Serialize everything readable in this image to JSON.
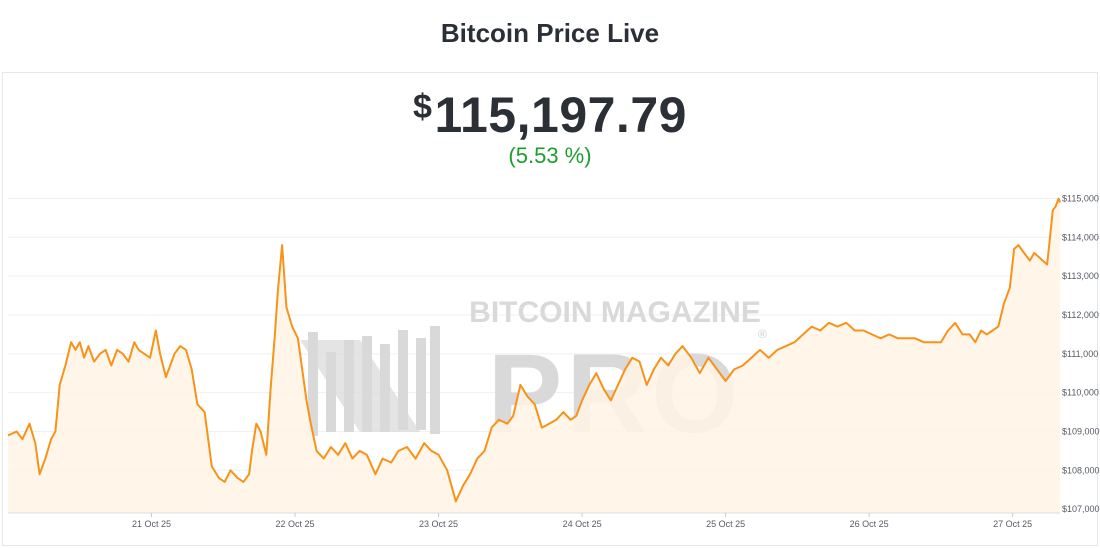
{
  "page": {
    "title": "Bitcoin Price Live"
  },
  "ticker": {
    "currency_symbol": "$",
    "price": "115,197.79",
    "change": "(5.53 %)"
  },
  "watermark": {
    "line1": "BITCOIN MAGAZINE",
    "line2": "PRO",
    "mark": "®"
  },
  "colors": {
    "line": "#f7931a",
    "fill": "#fff3e4",
    "grid": "#eef0f2",
    "change_positive": "#1f9d2f",
    "watermark": "#d9d9d9"
  },
  "chart_data": {
    "type": "area",
    "title": "",
    "xlabel": "",
    "ylabel": "",
    "y_axis_position": "right",
    "grid": true,
    "x_range": [
      20.0,
      27.33
    ],
    "ylim": [
      106900,
      115400
    ],
    "x_ticks": [
      {
        "x": 21,
        "label": "21 Oct 25"
      },
      {
        "x": 22,
        "label": "22 Oct 25"
      },
      {
        "x": 23,
        "label": "23 Oct 25"
      },
      {
        "x": 24,
        "label": "24 Oct 25"
      },
      {
        "x": 25,
        "label": "25 Oct 25"
      },
      {
        "x": 26,
        "label": "26 Oct 25"
      },
      {
        "x": 27,
        "label": "27 Oct 25"
      }
    ],
    "y_ticks": [
      {
        "y": 107000,
        "label": "$107,000"
      },
      {
        "y": 108000,
        "label": "$108,000"
      },
      {
        "y": 109000,
        "label": "$109,000"
      },
      {
        "y": 110000,
        "label": "$110,000"
      },
      {
        "y": 111000,
        "label": "$111,000"
      },
      {
        "y": 112000,
        "label": "$112,000"
      },
      {
        "y": 113000,
        "label": "$113,000"
      },
      {
        "y": 114000,
        "label": "$114,000"
      },
      {
        "y": 115000,
        "label": "$115,000"
      }
    ],
    "series": [
      {
        "points": [
          [
            20.0,
            108900
          ],
          [
            20.06,
            109000
          ],
          [
            20.1,
            108800
          ],
          [
            20.15,
            109200
          ],
          [
            20.19,
            108700
          ],
          [
            20.22,
            107900
          ],
          [
            20.26,
            108300
          ],
          [
            20.3,
            108800
          ],
          [
            20.33,
            109000
          ],
          [
            20.36,
            110200
          ],
          [
            20.4,
            110700
          ],
          [
            20.44,
            111300
          ],
          [
            20.47,
            111100
          ],
          [
            20.5,
            111300
          ],
          [
            20.53,
            110900
          ],
          [
            20.56,
            111200
          ],
          [
            20.6,
            110800
          ],
          [
            20.64,
            111000
          ],
          [
            20.68,
            111100
          ],
          [
            20.72,
            110700
          ],
          [
            20.76,
            111100
          ],
          [
            20.8,
            111000
          ],
          [
            20.84,
            110800
          ],
          [
            20.88,
            111300
          ],
          [
            20.91,
            111100
          ],
          [
            20.95,
            111000
          ],
          [
            20.99,
            110900
          ],
          [
            21.03,
            111600
          ],
          [
            21.06,
            111000
          ],
          [
            21.1,
            110400
          ],
          [
            21.13,
            110700
          ],
          [
            21.16,
            111000
          ],
          [
            21.2,
            111200
          ],
          [
            21.24,
            111100
          ],
          [
            21.28,
            110600
          ],
          [
            21.32,
            109700
          ],
          [
            21.37,
            109500
          ],
          [
            21.42,
            108100
          ],
          [
            21.47,
            107800
          ],
          [
            21.51,
            107700
          ],
          [
            21.55,
            108000
          ],
          [
            21.6,
            107800
          ],
          [
            21.64,
            107700
          ],
          [
            21.68,
            107900
          ],
          [
            21.7,
            108500
          ],
          [
            21.73,
            109200
          ],
          [
            21.76,
            109000
          ],
          [
            21.8,
            108400
          ],
          [
            21.83,
            110100
          ],
          [
            21.86,
            111500
          ],
          [
            21.88,
            112600
          ],
          [
            21.91,
            113800
          ],
          [
            21.94,
            112200
          ],
          [
            21.98,
            111700
          ],
          [
            22.02,
            111400
          ],
          [
            22.05,
            110600
          ],
          [
            22.08,
            109800
          ],
          [
            22.11,
            109200
          ],
          [
            22.15,
            108500
          ],
          [
            22.2,
            108300
          ],
          [
            22.25,
            108600
          ],
          [
            22.3,
            108400
          ],
          [
            22.35,
            108700
          ],
          [
            22.4,
            108300
          ],
          [
            22.45,
            108500
          ],
          [
            22.5,
            108400
          ],
          [
            22.56,
            107900
          ],
          [
            22.61,
            108300
          ],
          [
            22.67,
            108200
          ],
          [
            22.72,
            108500
          ],
          [
            22.78,
            108600
          ],
          [
            22.84,
            108300
          ],
          [
            22.9,
            108700
          ],
          [
            22.95,
            108500
          ],
          [
            23.0,
            108400
          ],
          [
            23.06,
            108000
          ],
          [
            23.12,
            107200
          ],
          [
            23.17,
            107600
          ],
          [
            23.22,
            107900
          ],
          [
            23.27,
            108300
          ],
          [
            23.32,
            108500
          ],
          [
            23.37,
            109100
          ],
          [
            23.42,
            109300
          ],
          [
            23.48,
            109200
          ],
          [
            23.52,
            109400
          ],
          [
            23.57,
            110200
          ],
          [
            23.62,
            109900
          ],
          [
            23.67,
            109700
          ],
          [
            23.72,
            109100
          ],
          [
            23.77,
            109200
          ],
          [
            23.82,
            109300
          ],
          [
            23.87,
            109500
          ],
          [
            23.92,
            109300
          ],
          [
            23.96,
            109400
          ],
          [
            24.0,
            109800
          ],
          [
            24.05,
            110200
          ],
          [
            24.1,
            110500
          ],
          [
            24.15,
            110100
          ],
          [
            24.2,
            109800
          ],
          [
            24.25,
            110200
          ],
          [
            24.3,
            110600
          ],
          [
            24.35,
            110900
          ],
          [
            24.4,
            110800
          ],
          [
            24.45,
            110200
          ],
          [
            24.5,
            110600
          ],
          [
            24.55,
            110900
          ],
          [
            24.6,
            110700
          ],
          [
            24.65,
            111000
          ],
          [
            24.7,
            111200
          ],
          [
            24.76,
            110900
          ],
          [
            24.82,
            110500
          ],
          [
            24.88,
            110900
          ],
          [
            24.94,
            110600
          ],
          [
            25.0,
            110300
          ],
          [
            25.06,
            110600
          ],
          [
            25.12,
            110700
          ],
          [
            25.18,
            110900
          ],
          [
            25.24,
            111100
          ],
          [
            25.3,
            110900
          ],
          [
            25.36,
            111100
          ],
          [
            25.42,
            111200
          ],
          [
            25.48,
            111300
          ],
          [
            25.54,
            111500
          ],
          [
            25.6,
            111700
          ],
          [
            25.66,
            111600
          ],
          [
            25.72,
            111800
          ],
          [
            25.78,
            111700
          ],
          [
            25.84,
            111800
          ],
          [
            25.9,
            111600
          ],
          [
            25.96,
            111600
          ],
          [
            26.02,
            111500
          ],
          [
            26.08,
            111400
          ],
          [
            26.14,
            111500
          ],
          [
            26.2,
            111400
          ],
          [
            26.26,
            111400
          ],
          [
            26.32,
            111400
          ],
          [
            26.38,
            111300
          ],
          [
            26.44,
            111300
          ],
          [
            26.5,
            111300
          ],
          [
            26.55,
            111600
          ],
          [
            26.6,
            111800
          ],
          [
            26.65,
            111500
          ],
          [
            26.7,
            111500
          ],
          [
            26.74,
            111300
          ],
          [
            26.78,
            111600
          ],
          [
            26.82,
            111500
          ],
          [
            26.86,
            111600
          ],
          [
            26.9,
            111700
          ],
          [
            26.94,
            112300
          ],
          [
            26.98,
            112700
          ],
          [
            27.01,
            113700
          ],
          [
            27.04,
            113800
          ],
          [
            27.08,
            113600
          ],
          [
            27.12,
            113400
          ],
          [
            27.15,
            113600
          ],
          [
            27.18,
            113500
          ],
          [
            27.21,
            113400
          ],
          [
            27.24,
            113300
          ],
          [
            27.26,
            114000
          ],
          [
            27.28,
            114700
          ],
          [
            27.3,
            114800
          ],
          [
            27.32,
            115000
          ],
          [
            27.33,
            114900
          ]
        ]
      }
    ]
  }
}
